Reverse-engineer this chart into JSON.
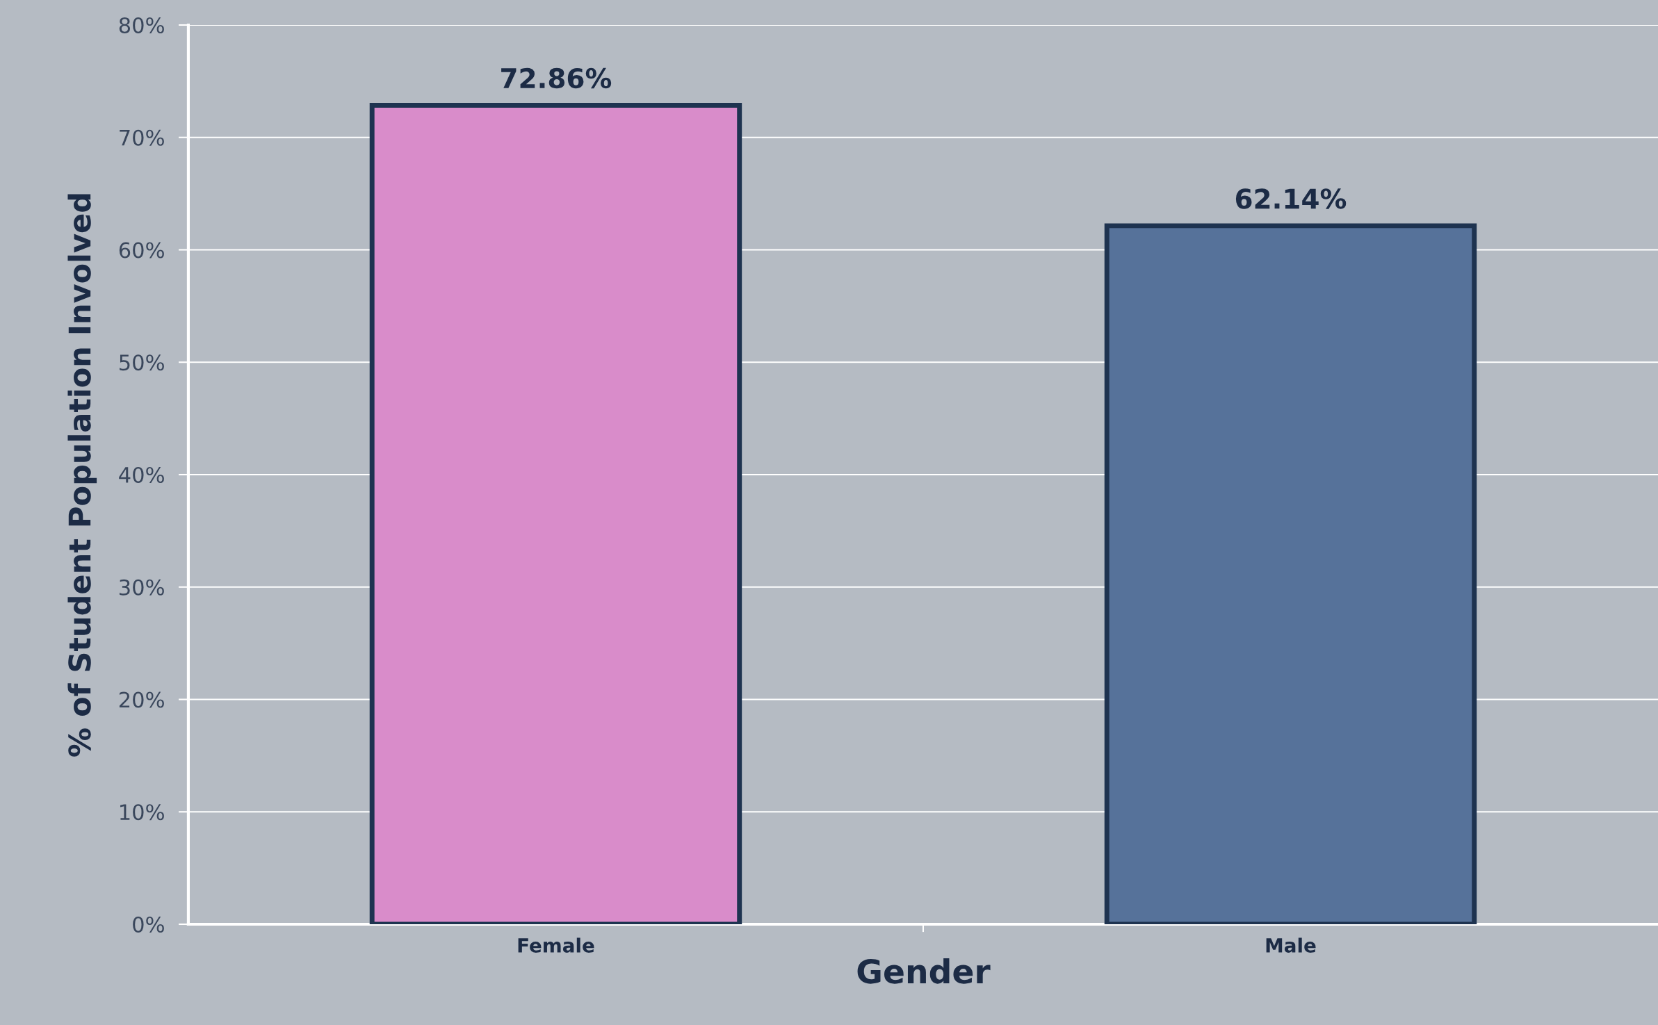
{
  "chart_data": {
    "type": "bar",
    "xlabel": "Gender",
    "ylabel": "% of Student Population Involved",
    "categories": [
      "Female",
      "Male"
    ],
    "values": [
      72.86,
      62.14
    ],
    "colors": [
      "#d98cca",
      "#56729a"
    ],
    "value_labels": [
      "72.86%",
      "62.14%"
    ],
    "ylim": [
      0,
      80
    ],
    "yticks": [
      {
        "value": 0,
        "label": "0%"
      },
      {
        "value": 10,
        "label": "10%"
      },
      {
        "value": 20,
        "label": "20%"
      },
      {
        "value": 30,
        "label": "30%"
      },
      {
        "value": 40,
        "label": "40%"
      },
      {
        "value": 50,
        "label": "50%"
      },
      {
        "value": 60,
        "label": "60%"
      },
      {
        "value": 70,
        "label": "70%"
      },
      {
        "value": 80,
        "label": "80%"
      }
    ],
    "grid": "y"
  }
}
